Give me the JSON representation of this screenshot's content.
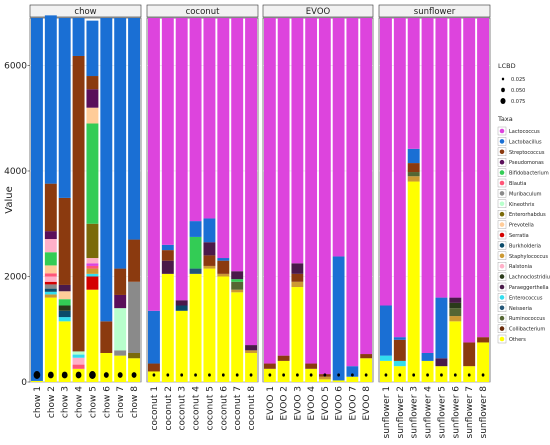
{
  "chart_data": {
    "type": "bar",
    "stacked": true,
    "faceted": true,
    "ylabel": "Value",
    "ylim": [
      0,
      6900
    ],
    "yticks": [
      0,
      2000,
      4000,
      6000
    ],
    "grid": true,
    "legend_placement": "right",
    "size_legend": {
      "title": "LCBD",
      "entries": [
        "0.025",
        "0.050",
        "0.075"
      ]
    },
    "colors": {
      "Lactococcus": "#dd44dd",
      "Lactobacillus": "#1a6fd4",
      "Streptococcus": "#8b3a0f",
      "Pseudomonas": "#5a0f5a",
      "Bifidobacterium": "#33cc55",
      "Blautia": "#ff5577",
      "Muribaculum": "#8a8a8a",
      "Kineothrix": "#b8ffcc",
      "Enterorhabdus": "#7a6a0a",
      "Prevotella": "#ffcc99",
      "Serratia": "#d40000",
      "Burkholderia": "#0a4a6a",
      "Staphylococcus": "#cc9933",
      "Ralstonia": "#ffb0c8",
      "Lachnoclostridium": "#2a3a1a",
      "Paraeggerthella": "#4a1a4a",
      "Enterococcus": "#33ddee",
      "Neisseria": "#225577",
      "Ruminococcus": "#556633",
      "Collibacterium": "#6a2a0a",
      "Others": "#ffff00"
    },
    "taxa_legend": {
      "title": "Taxa",
      "entries": [
        "Lactococcus",
        "Lactobacillus",
        "Streptococcus",
        "Pseudomonas",
        "Bifidobacterium",
        "Blautia",
        "Muribaculum",
        "Kineothrix",
        "Enterorhabdus",
        "Prevotella",
        "Serratia",
        "Burkholderia",
        "Staphylococcus",
        "Ralstonia",
        "Lachnoclostridium",
        "Paraeggerthella",
        "Enterococcus",
        "Neisseria",
        "Ruminococcus",
        "Collibacterium",
        "Others"
      ]
    },
    "facets": [
      {
        "title": "chow",
        "samples": [
          {
            "label": "chow 1",
            "lcbd": 0.07,
            "stack": [
              [
                "Others",
                20
              ],
              [
                "Lactobacillus",
                6880
              ]
            ]
          },
          {
            "label": "chow 2",
            "lcbd": 0.06,
            "stack": [
              [
                "Others",
                1600
              ],
              [
                "Staphylococcus",
                60
              ],
              [
                "Enterococcus",
                50
              ],
              [
                "Burkholderia",
                60
              ],
              [
                "Muribaculum",
                80
              ],
              [
                "Serratia",
                50
              ],
              [
                "Ralstonia",
                100
              ],
              [
                "Blautia",
                60
              ],
              [
                "Prevotella",
                150
              ],
              [
                "Bifidobacterium",
                250
              ],
              [
                "Ralstonia",
                250
              ],
              [
                "Pseudomonas",
                150
              ],
              [
                "Streptococcus",
                900
              ],
              [
                "Lactobacillus",
                3190
              ]
            ]
          },
          {
            "label": "chow 3",
            "lcbd": 0.06,
            "stack": [
              [
                "Others",
                1150
              ],
              [
                "Enterococcus",
                80
              ],
              [
                "Burkholderia",
                120
              ],
              [
                "Lachnoclostridium",
                100
              ],
              [
                "Bifidobacterium",
                120
              ],
              [
                "Prevotella",
                150
              ],
              [
                "Paraeggerthella",
                120
              ],
              [
                "Streptococcus",
                1650
              ],
              [
                "Lactobacillus",
                3410
              ]
            ]
          },
          {
            "label": "chow 4",
            "lcbd": 0.06,
            "stack": [
              [
                "Others",
                250
              ],
              [
                "Blautia",
                80
              ],
              [
                "Ralstonia",
                130
              ],
              [
                "Enterococcus",
                60
              ],
              [
                "Kineothrix",
                60
              ],
              [
                "Streptococcus",
                5600
              ],
              [
                "Lactobacillus",
                720
              ]
            ]
          },
          {
            "label": "chow 5",
            "lcbd": 0.07,
            "stack": [
              [
                "Others",
                1750
              ],
              [
                "Serratia",
                250
              ],
              [
                "Enterococcus",
                50
              ],
              [
                "Staphylococcus",
                100
              ],
              [
                "Blautia",
                50
              ],
              [
                "Lactococcus",
                50
              ],
              [
                "Ralstonia",
                100
              ],
              [
                "Enterorhabdus",
                650
              ],
              [
                "Bifidobacterium",
                1900
              ],
              [
                "Prevotella",
                300
              ],
              [
                "Pseudomonas",
                350
              ],
              [
                "Streptococcus",
                250
              ],
              [
                "Lactobacillus",
                1050
              ]
            ]
          },
          {
            "label": "chow 6",
            "lcbd": 0.05,
            "stack": [
              [
                "Others",
                550
              ],
              [
                "Streptococcus",
                600
              ],
              [
                "Lactobacillus",
                5750
              ]
            ]
          },
          {
            "label": "chow 7",
            "lcbd": 0.05,
            "stack": [
              [
                "Others",
                500
              ],
              [
                "Muribaculum",
                100
              ],
              [
                "Kineothrix",
                800
              ],
              [
                "Pseudomonas",
                250
              ],
              [
                "Streptococcus",
                500
              ],
              [
                "Lactobacillus",
                4750
              ]
            ]
          },
          {
            "label": "chow 8",
            "lcbd": 0.05,
            "stack": [
              [
                "Others",
                450
              ],
              [
                "Enterorhabdus",
                100
              ],
              [
                "Muribaculum",
                1350
              ],
              [
                "Streptococcus",
                800
              ],
              [
                "Lactobacillus",
                4200
              ]
            ]
          }
        ]
      },
      {
        "title": "coconut",
        "samples": [
          {
            "label": "coconut 1",
            "lcbd": 0.025,
            "stack": [
              [
                "Others",
                200
              ],
              [
                "Streptococcus",
                150
              ],
              [
                "Lactobacillus",
                1000
              ],
              [
                "Lactococcus",
                5550
              ]
            ]
          },
          {
            "label": "coconut 2",
            "lcbd": 0.025,
            "stack": [
              [
                "Others",
                2050
              ],
              [
                "Paraeggerthella",
                250
              ],
              [
                "Streptococcus",
                200
              ],
              [
                "Lactobacillus",
                100
              ],
              [
                "Lactococcus",
                4300
              ]
            ]
          },
          {
            "label": "coconut 3",
            "lcbd": 0.025,
            "stack": [
              [
                "Others",
                1350
              ],
              [
                "Burkholderia",
                100
              ],
              [
                "Paraeggerthella",
                100
              ],
              [
                "Lactococcus",
                5350
              ]
            ]
          },
          {
            "label": "coconut 4",
            "lcbd": 0.025,
            "stack": [
              [
                "Others",
                2050
              ],
              [
                "Neisseria",
                100
              ],
              [
                "Bifidobacterium",
                600
              ],
              [
                "Lactobacillus",
                300
              ],
              [
                "Lactococcus",
                3850
              ]
            ]
          },
          {
            "label": "coconut 5",
            "lcbd": 0.025,
            "stack": [
              [
                "Others",
                2150
              ],
              [
                "Staphylococcus",
                50
              ],
              [
                "Streptococcus",
                200
              ],
              [
                "Paraeggerthella",
                250
              ],
              [
                "Lactobacillus",
                450
              ],
              [
                "Lactococcus",
                3800
              ]
            ]
          },
          {
            "label": "coconut 6",
            "lcbd": 0.025,
            "stack": [
              [
                "Others",
                2000
              ],
              [
                "Staphylococcus",
                50
              ],
              [
                "Streptococcus",
                250
              ],
              [
                "Lactobacillus",
                50
              ],
              [
                "Lactococcus",
                4550
              ]
            ]
          },
          {
            "label": "coconut 7",
            "lcbd": 0.025,
            "stack": [
              [
                "Others",
                1700
              ],
              [
                "Staphylococcus",
                50
              ],
              [
                "Ruminococcus",
                150
              ],
              [
                "Bifidobacterium",
                50
              ],
              [
                "Paraeggerthella",
                150
              ],
              [
                "Lactococcus",
                4800
              ]
            ]
          },
          {
            "label": "coconut 8",
            "lcbd": 0.025,
            "stack": [
              [
                "Others",
                550
              ],
              [
                "Staphylococcus",
                50
              ],
              [
                "Paraeggerthella",
                100
              ],
              [
                "Lactococcus",
                6200
              ]
            ]
          }
        ]
      },
      {
        "title": "EVOO",
        "samples": [
          {
            "label": "EVOO 1",
            "lcbd": 0.025,
            "stack": [
              [
                "Others",
                250
              ],
              [
                "Streptococcus",
                100
              ],
              [
                "Lactococcus",
                6550
              ]
            ]
          },
          {
            "label": "EVOO 2",
            "lcbd": 0.025,
            "stack": [
              [
                "Others",
                400
              ],
              [
                "Streptococcus",
                100
              ],
              [
                "Lactococcus",
                6400
              ]
            ]
          },
          {
            "label": "EVOO 3",
            "lcbd": 0.025,
            "stack": [
              [
                "Others",
                1800
              ],
              [
                "Staphylococcus",
                100
              ],
              [
                "Streptococcus",
                150
              ],
              [
                "Paraeggerthella",
                200
              ],
              [
                "Lactococcus",
                4650
              ]
            ]
          },
          {
            "label": "EVOO 4",
            "lcbd": 0.025,
            "stack": [
              [
                "Others",
                250
              ],
              [
                "Streptococcus",
                100
              ],
              [
                "Lactococcus",
                6550
              ]
            ]
          },
          {
            "label": "EVOO 5",
            "lcbd": 0.025,
            "stack": [
              [
                "Others",
                50
              ],
              [
                "Staphylococcus",
                50
              ],
              [
                "Streptococcus",
                50
              ],
              [
                "Lactococcus",
                6750
              ]
            ]
          },
          {
            "label": "EVOO 6",
            "lcbd": 0.025,
            "stack": [
              [
                "Others",
                30
              ],
              [
                "Lactobacillus",
                2350
              ],
              [
                "Lactococcus",
                4520
              ]
            ]
          },
          {
            "label": "EVOO 7",
            "lcbd": 0.025,
            "stack": [
              [
                "Others",
                100
              ],
              [
                "Lactobacillus",
                200
              ],
              [
                "Lactococcus",
                6600
              ]
            ]
          },
          {
            "label": "EVOO 8",
            "lcbd": 0.025,
            "stack": [
              [
                "Others",
                450
              ],
              [
                "Streptococcus",
                80
              ],
              [
                "Lactococcus",
                6370
              ]
            ]
          }
        ]
      },
      {
        "title": "sunflower",
        "samples": [
          {
            "label": "sunflower 1",
            "lcbd": 0.025,
            "stack": [
              [
                "Others",
                400
              ],
              [
                "Enterococcus",
                100
              ],
              [
                "Lactobacillus",
                950
              ],
              [
                "Lactococcus",
                5450
              ]
            ]
          },
          {
            "label": "sunflower 2",
            "lcbd": 0.025,
            "stack": [
              [
                "Others",
                300
              ],
              [
                "Enterococcus",
                100
              ],
              [
                "Streptococcus",
                400
              ],
              [
                "Lactobacillus",
                50
              ],
              [
                "Lactococcus",
                6050
              ]
            ]
          },
          {
            "label": "sunflower 3",
            "lcbd": 0.025,
            "stack": [
              [
                "Others",
                3800
              ],
              [
                "Staphylococcus",
                100
              ],
              [
                "Ruminococcus",
                80
              ],
              [
                "Streptococcus",
                170
              ],
              [
                "Lactobacillus",
                270
              ],
              [
                "Lactococcus",
                2480
              ]
            ]
          },
          {
            "label": "sunflower 4",
            "lcbd": 0.025,
            "stack": [
              [
                "Others",
                400
              ],
              [
                "Lactobacillus",
                150
              ],
              [
                "Lactococcus",
                6350
              ]
            ]
          },
          {
            "label": "sunflower 5",
            "lcbd": 0.025,
            "stack": [
              [
                "Others",
                300
              ],
              [
                "Paraeggerthella",
                150
              ],
              [
                "Lactobacillus",
                1150
              ],
              [
                "Lactococcus",
                5300
              ]
            ]
          },
          {
            "label": "sunflower 6",
            "lcbd": 0.025,
            "stack": [
              [
                "Others",
                1150
              ],
              [
                "Staphylococcus",
                100
              ],
              [
                "Ruminococcus",
                150
              ],
              [
                "Lachnoclostridium",
                100
              ],
              [
                "Paraeggerthella",
                100
              ],
              [
                "Lactococcus",
                5300
              ]
            ]
          },
          {
            "label": "sunflower 7",
            "lcbd": 0.025,
            "stack": [
              [
                "Others",
                300
              ],
              [
                "Streptococcus",
                450
              ],
              [
                "Lactococcus",
                6150
              ]
            ]
          },
          {
            "label": "sunflower 8",
            "lcbd": 0.025,
            "stack": [
              [
                "Others",
                750
              ],
              [
                "Streptococcus",
                100
              ],
              [
                "Lactococcus",
                6050
              ]
            ]
          }
        ]
      }
    ]
  }
}
